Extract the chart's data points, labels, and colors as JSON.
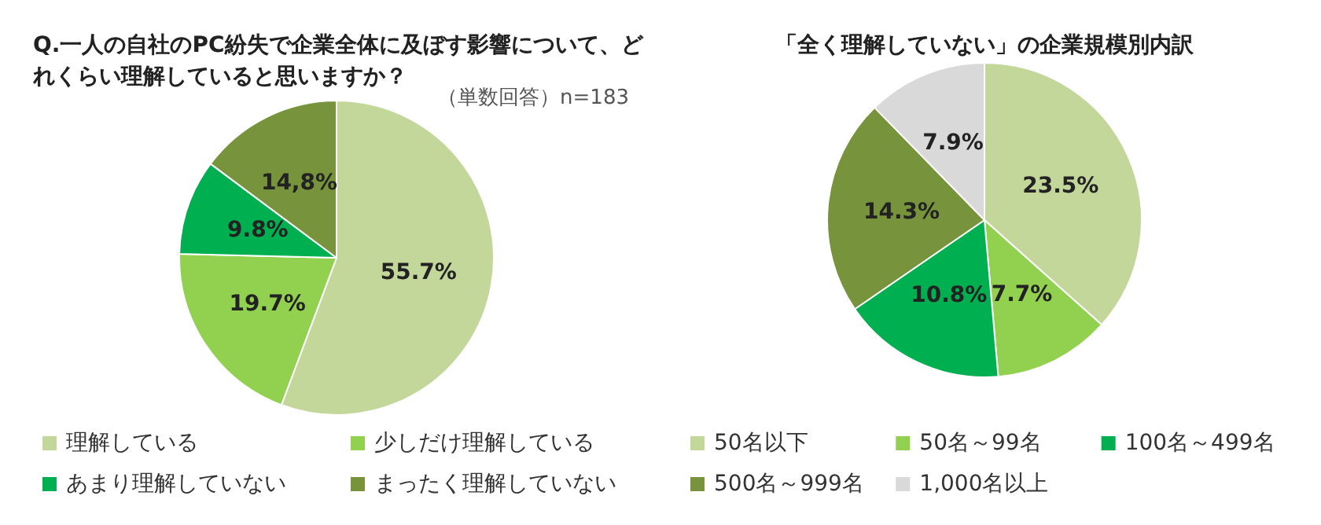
{
  "chart_data": [
    {
      "type": "pie",
      "title": "Q.一人の自社のPC紛失で企業全体に及ぼす影響について、どれくらい理解していると思いますか？",
      "annotations": [
        "（単数回答）n=183"
      ],
      "categories": [
        "理解している",
        "少しだけ理解している",
        "あまり理解していない",
        "まったく理解していない"
      ],
      "values": [
        55.7,
        19.7,
        9.8,
        14.8
      ],
      "value_labels": [
        "55.7%",
        "19.7%",
        "9.8%",
        "14,8%"
      ],
      "colors": [
        "#c4d79b",
        "#92d050",
        "#00b050",
        "#77933c"
      ],
      "legend": "bottom"
    },
    {
      "type": "pie",
      "title": "「全く理解していない」の企業規模別内訳",
      "categories": [
        "50名以下",
        "50名～99名",
        "100名～499名",
        "500名～999名",
        "1,000名以上"
      ],
      "values": [
        23.5,
        7.7,
        10.8,
        14.3,
        7.9
      ],
      "value_labels": [
        "23.5%",
        "7.7%",
        "10.8%",
        "14.3%",
        "7.9%"
      ],
      "colors": [
        "#c4d79b",
        "#92d050",
        "#00b050",
        "#77933c",
        "#d9d9d9"
      ],
      "legend": "bottom"
    }
  ]
}
